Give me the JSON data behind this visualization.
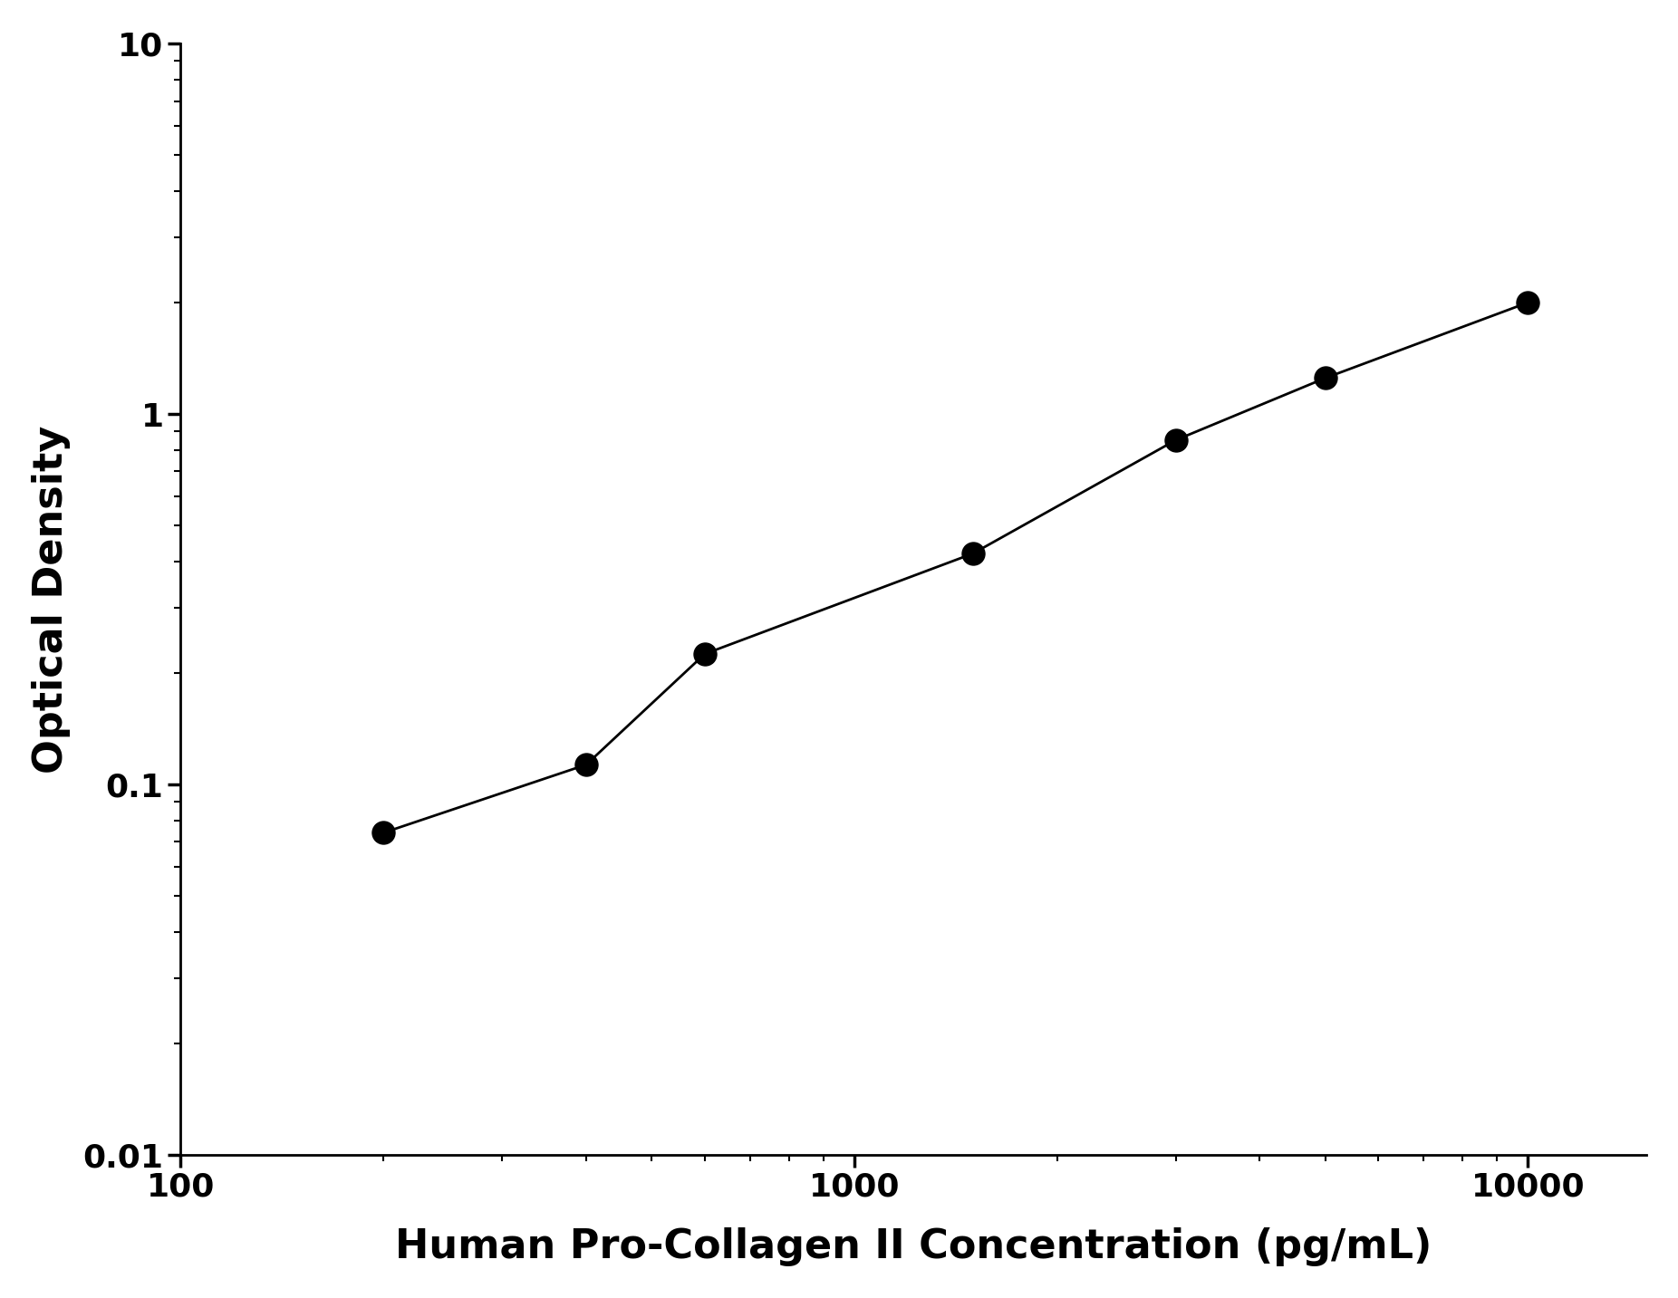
{
  "x_data": [
    200,
    400,
    600,
    1500,
    3000,
    5000,
    10000
  ],
  "y_data": [
    0.074,
    0.113,
    0.225,
    0.42,
    0.85,
    1.25,
    2.0
  ],
  "xlim": [
    100,
    15000
  ],
  "ylim": [
    0.01,
    10
  ],
  "xlabel": "Human Pro-Collagen II Concentration (pg/mL)",
  "ylabel": "Optical Density",
  "xlabel_fontsize": 32,
  "ylabel_fontsize": 32,
  "tick_fontsize": 26,
  "marker": "o",
  "marker_size": 18,
  "marker_color": "#000000",
  "line_color": "#000000",
  "line_width": 2.0,
  "background_color": "#ffffff",
  "spine_color": "#000000",
  "xticks": [
    100,
    1000,
    10000
  ],
  "xtick_labels": [
    "100",
    "1000",
    "10000"
  ],
  "yticks": [
    0.01,
    0.1,
    1,
    10
  ],
  "ytick_labels": [
    "0.01",
    "0.1",
    "1",
    "10"
  ]
}
